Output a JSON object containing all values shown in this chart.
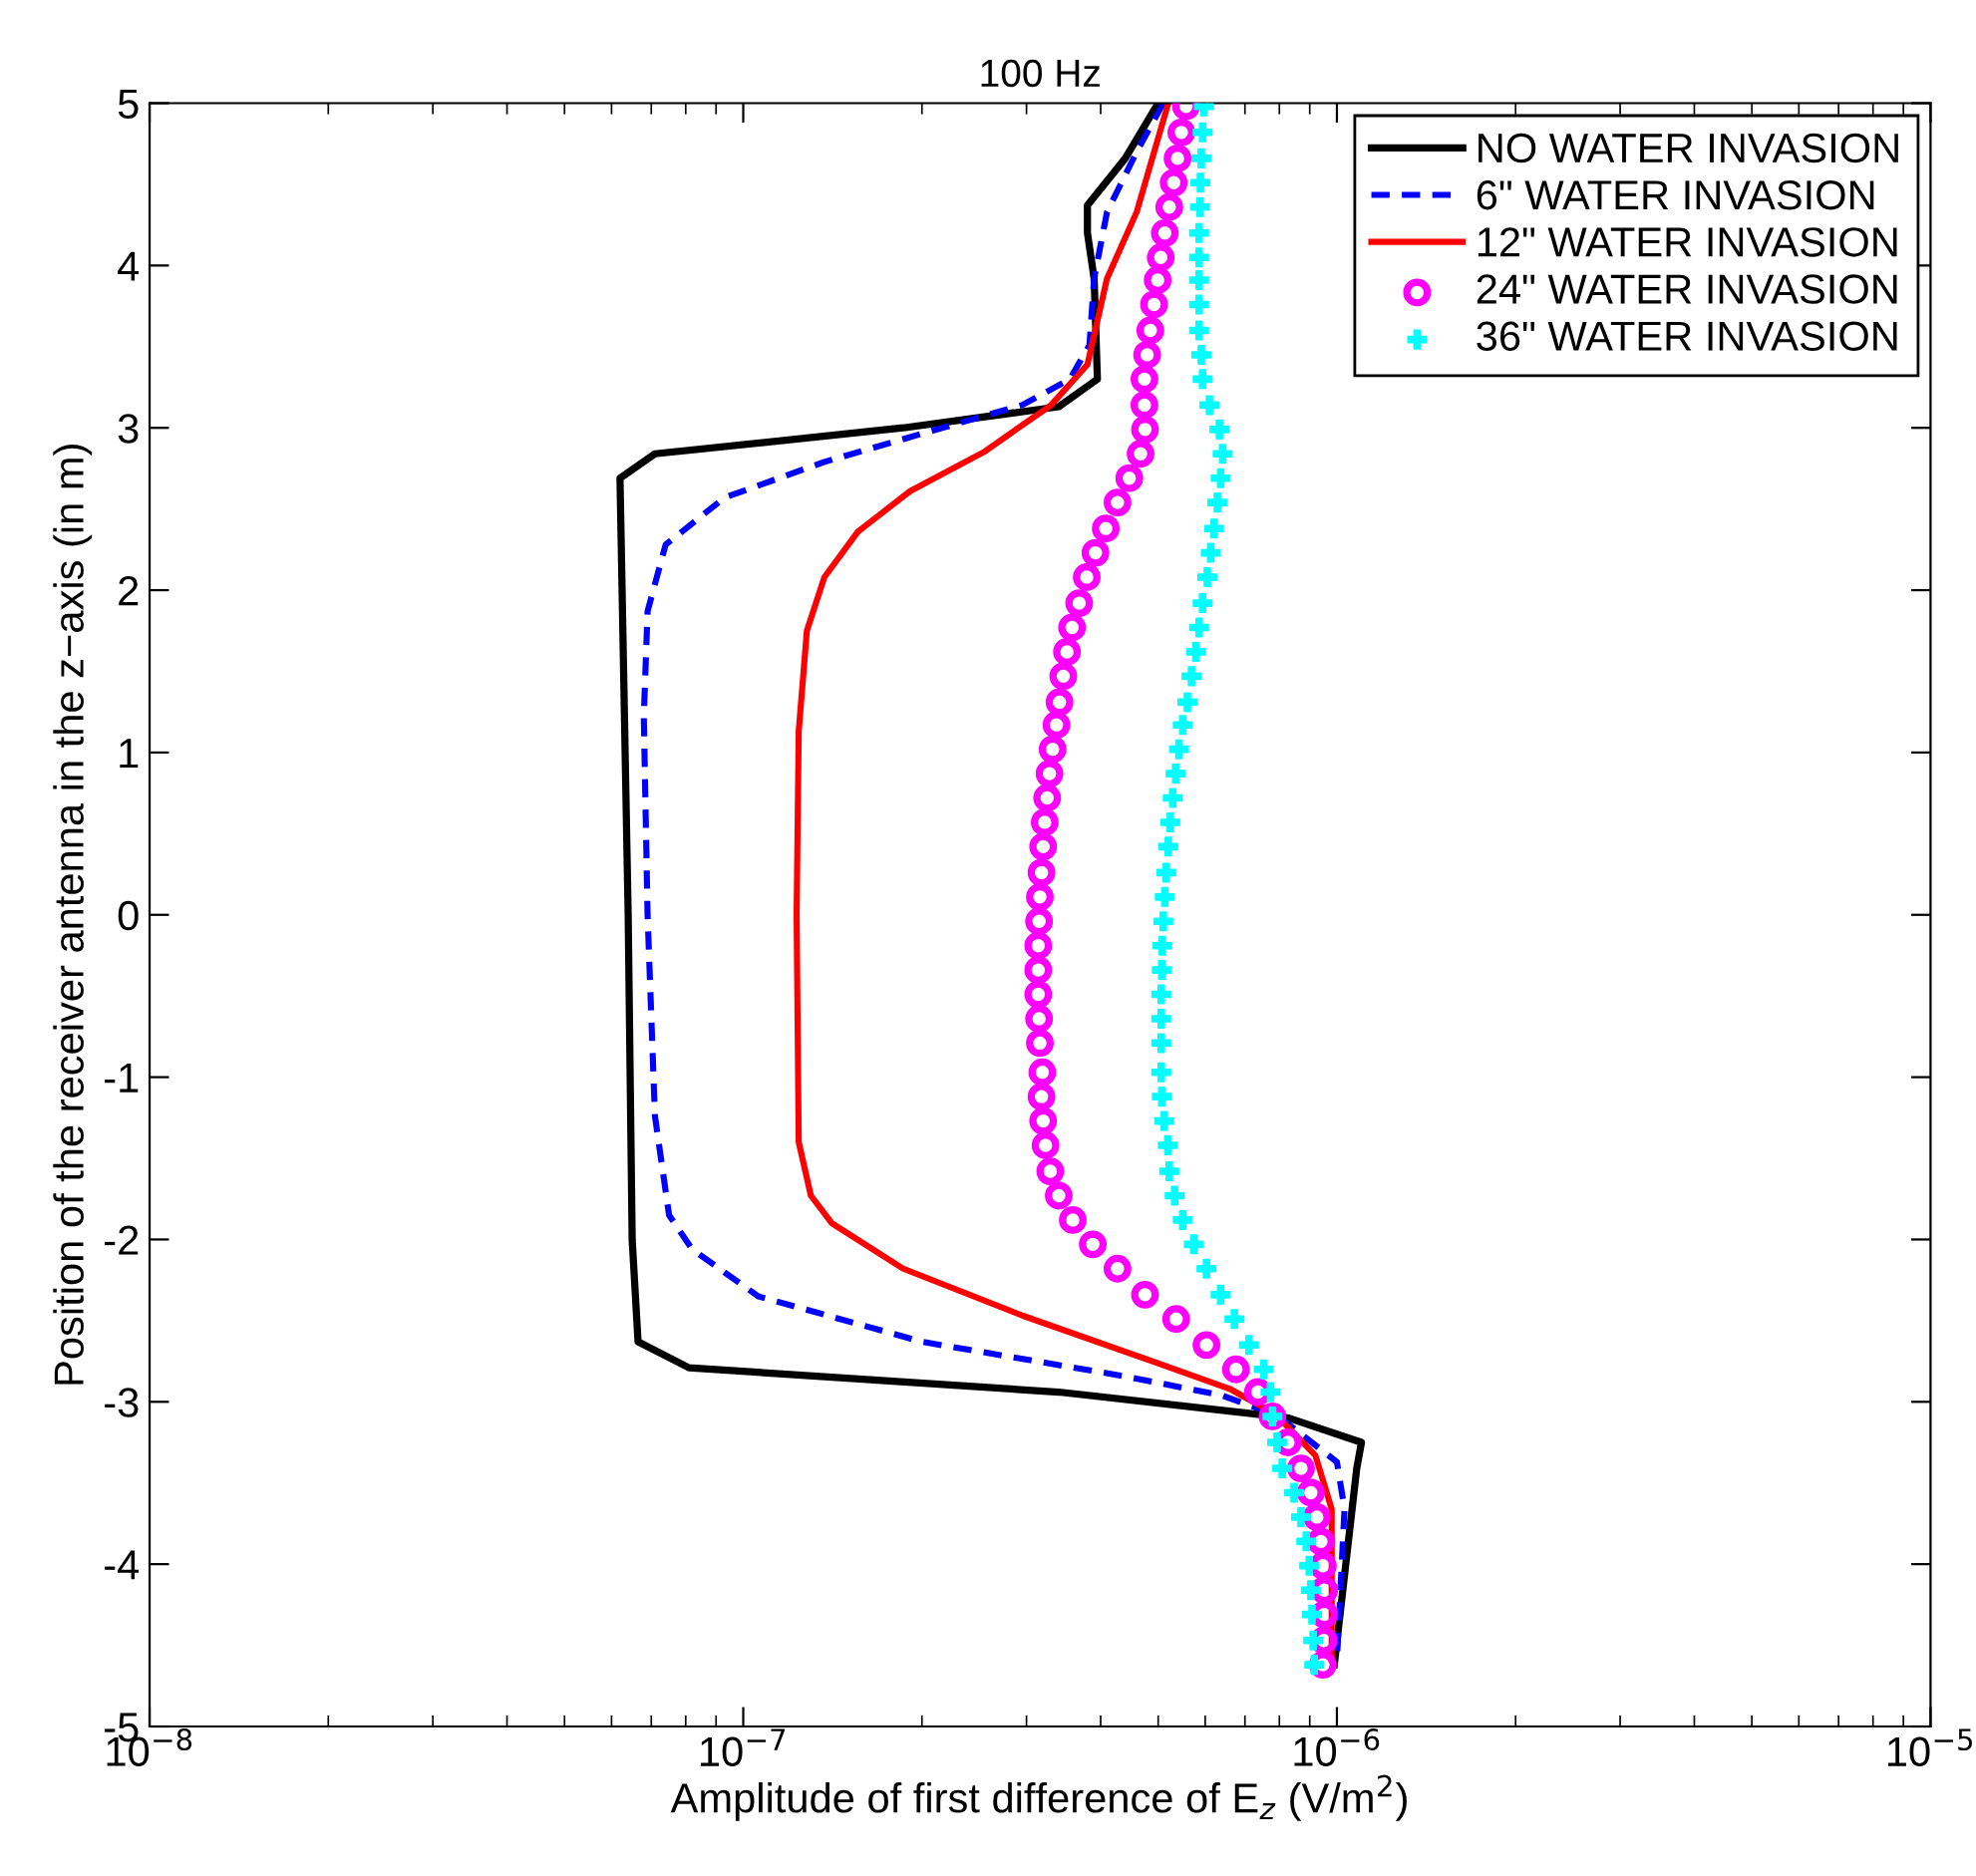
{
  "chart_data": {
    "type": "line",
    "title": "100 Hz",
    "xlabel": "Amplitude of first difference of E$_{z}$ (V/m$^{2}$)",
    "ylabel": "Position of the receiver antenna in the z−axis (in m)",
    "log": "x",
    "xlim": [
      1e-08,
      1e-05
    ],
    "xticks": [
      {
        "value": 1e-08,
        "label": "10$^{−8}$"
      },
      {
        "value": 1e-07,
        "label": "10$^{−7}$"
      },
      {
        "value": 1e-06,
        "label": "10$^{−6}$"
      },
      {
        "value": 1e-05,
        "label": "10$^{−5}$"
      }
    ],
    "ylim": [
      -5,
      5
    ],
    "yticks": [
      -5,
      -4,
      -3,
      -2,
      -1,
      0,
      1,
      2,
      3,
      4,
      5
    ],
    "grid": false,
    "legend": "top right",
    "series": [
      {
        "name": "NO WATER INVASION",
        "color": "#000000",
        "line_style": "solid",
        "marker": "none",
        "x": [
          5e-07,
          4.4e-07,
          3.8e-07,
          3.8e-07,
          3.9e-07,
          3.95e-07,
          3.4e-07,
          1.86e-07,
          7.1e-08,
          6.2e-08,
          6.4e-08,
          6.5e-08,
          6.65e-08,
          8.1e-08,
          3.4e-07,
          7.5e-07,
          8.3e-07,
          1.1e-06,
          1.08e-06,
          9.9e-07
        ],
        "values": [
          5.0,
          4.66,
          4.37,
          4.2,
          3.92,
          3.3,
          3.13,
          3.0,
          2.84,
          2.69,
          0,
          -2.0,
          -2.63,
          -2.79,
          -2.94,
          -3.08,
          -3.1,
          -3.25,
          -3.41,
          -4.62
        ]
      },
      {
        "name": "6\" WATER INVASION",
        "color": "#0000ff",
        "line_style": "dashed",
        "marker": "none",
        "x": [
          5.1e-07,
          4.6e-07,
          4.1e-07,
          3.9e-07,
          3.83e-07,
          3.55e-07,
          2.95e-07,
          2.07e-07,
          1.37e-07,
          9.3e-08,
          7.4e-08,
          6.9e-08,
          6.8e-08,
          6.9e-08,
          7.1e-08,
          7.5e-08,
          8.2e-08,
          1.06e-07,
          2e-07,
          4.35e-07,
          6.4e-07,
          7.9e-07,
          1e-06,
          1.03e-06,
          1e-06
        ],
        "values": [
          5.0,
          4.7,
          4.33,
          3.92,
          3.51,
          3.3,
          3.14,
          2.98,
          2.79,
          2.57,
          2.28,
          1.87,
          1.22,
          0,
          -1.24,
          -1.85,
          -2.06,
          -2.35,
          -2.63,
          -2.84,
          -2.96,
          -3.08,
          -3.37,
          -3.66,
          -4.59
        ]
      },
      {
        "name": "12\" WATER INVASION",
        "color": "#ff0000",
        "line_style": "solid",
        "marker": "none",
        "x": [
          5.2e-07,
          4.6e-07,
          4.1e-07,
          3.8e-07,
          3.3e-07,
          2.54e-07,
          1.91e-07,
          1.56e-07,
          1.37e-07,
          1.28e-07,
          1.24e-07,
          1.23e-07,
          1.24e-07,
          1.3e-07,
          1.41e-07,
          1.86e-07,
          2.96e-07,
          4.97e-07,
          6.6e-07,
          7.9e-07,
          9.2e-07,
          9.8e-07,
          9.8e-07
        ],
        "values": [
          5.0,
          4.33,
          3.92,
          3.39,
          3.14,
          2.85,
          2.61,
          2.36,
          2.08,
          1.75,
          1.13,
          0,
          -1.4,
          -1.73,
          -1.9,
          -2.18,
          -2.47,
          -2.76,
          -2.92,
          -3.08,
          -3.33,
          -3.66,
          -4.59
        ]
      },
      {
        "name": "24\" WATER INVASION",
        "type": "scatter",
        "color": "#ff00ff",
        "marker": "circle",
        "x": [
          5.57e-07,
          5.47e-07,
          5.39e-07,
          5.31e-07,
          5.22e-07,
          5.13e-07,
          5.05e-07,
          4.99e-07,
          4.92e-07,
          4.85e-07,
          4.79e-07,
          4.74e-07,
          4.74e-07,
          4.75e-07,
          4.67e-07,
          4.47e-07,
          4.27e-07,
          4.08e-07,
          3.92e-07,
          3.79e-07,
          3.68e-07,
          3.58e-07,
          3.51e-07,
          3.46e-07,
          3.41e-07,
          3.37e-07,
          3.32e-07,
          3.28e-07,
          3.25e-07,
          3.22e-07,
          3.2e-07,
          3.18e-07,
          3.16e-07,
          3.15e-07,
          3.14e-07,
          3.14e-07,
          3.14e-07,
          3.15e-07,
          3.16e-07,
          3.19e-07,
          3.18e-07,
          3.2e-07,
          3.23e-07,
          3.29e-07,
          3.4e-07,
          3.59e-07,
          3.88e-07,
          4.27e-07,
          4.75e-07,
          5.36e-07,
          6.03e-07,
          6.76e-07,
          7.36e-07,
          7.79e-07,
          8.27e-07,
          8.7e-07,
          9.04e-07,
          9.25e-07,
          9.4e-07,
          9.47e-07,
          9.52e-07,
          9.52e-07,
          9.5e-07,
          9.47e-07
        ],
        "values": [
          4.98,
          4.82,
          4.66,
          4.51,
          4.36,
          4.2,
          4.05,
          3.91,
          3.76,
          3.6,
          3.45,
          3.3,
          3.14,
          2.99,
          2.84,
          2.69,
          2.54,
          2.38,
          2.23,
          2.08,
          1.92,
          1.77,
          1.62,
          1.47,
          1.31,
          1.17,
          1.02,
          0.87,
          0.72,
          0.57,
          0.42,
          0.26,
          0.11,
          -0.04,
          -0.19,
          -0.34,
          -0.49,
          -0.64,
          -0.79,
          -0.97,
          -1.12,
          -1.27,
          -1.42,
          -1.58,
          -1.73,
          -1.88,
          -2.03,
          -2.18,
          -2.34,
          -2.49,
          -2.65,
          -2.8,
          -2.94,
          -3.09,
          -3.25,
          -3.41,
          -3.56,
          -3.71,
          -3.86,
          -4.01,
          -4.16,
          -4.31,
          -4.47,
          -4.62
        ]
      },
      {
        "name": "36\" WATER INVASION",
        "type": "scatter",
        "color": "#00ffff",
        "marker": "cross",
        "x": [
          5.97e-07,
          5.94e-07,
          5.91e-07,
          5.89e-07,
          5.88e-07,
          5.86e-07,
          5.86e-07,
          5.86e-07,
          5.86e-07,
          5.86e-07,
          5.91e-07,
          5.94e-07,
          6.1e-07,
          6.34e-07,
          6.42e-07,
          6.37e-07,
          6.29e-07,
          6.21e-07,
          6.13e-07,
          6.05e-07,
          5.94e-07,
          5.86e-07,
          5.79e-07,
          5.69e-07,
          5.6e-07,
          5.5e-07,
          5.42e-07,
          5.35e-07,
          5.29e-07,
          5.24e-07,
          5.2e-07,
          5.16e-07,
          5.13e-07,
          5.1e-07,
          5.08e-07,
          5.07e-07,
          5.06e-07,
          5.06e-07,
          5.06e-07,
          5.06e-07,
          5.07e-07,
          5.12e-07,
          5.19e-07,
          5.22e-07,
          5.33e-07,
          5.5e-07,
          5.74e-07,
          6.03e-07,
          6.37e-07,
          6.72e-07,
          7.11e-07,
          7.53e-07,
          7.73e-07,
          7.79e-07,
          7.93e-07,
          8.09e-07,
          8.47e-07,
          8.7e-07,
          8.88e-07,
          8.98e-07,
          9.04e-07,
          9.08e-07,
          9.12e-07,
          9.16e-07
        ],
        "values": [
          4.98,
          4.82,
          4.66,
          4.51,
          4.36,
          4.2,
          4.05,
          3.91,
          3.76,
          3.6,
          3.45,
          3.3,
          3.14,
          2.99,
          2.84,
          2.69,
          2.54,
          2.38,
          2.23,
          2.08,
          1.92,
          1.77,
          1.62,
          1.47,
          1.31,
          1.17,
          1.02,
          0.87,
          0.72,
          0.57,
          0.42,
          0.26,
          0.11,
          -0.04,
          -0.19,
          -0.34,
          -0.49,
          -0.64,
          -0.79,
          -0.97,
          -1.12,
          -1.27,
          -1.42,
          -1.58,
          -1.73,
          -1.88,
          -2.03,
          -2.18,
          -2.34,
          -2.49,
          -2.65,
          -2.8,
          -2.94,
          -3.09,
          -3.25,
          -3.41,
          -3.56,
          -3.71,
          -3.86,
          -4.01,
          -4.16,
          -4.31,
          -4.47,
          -4.62
        ]
      }
    ]
  }
}
